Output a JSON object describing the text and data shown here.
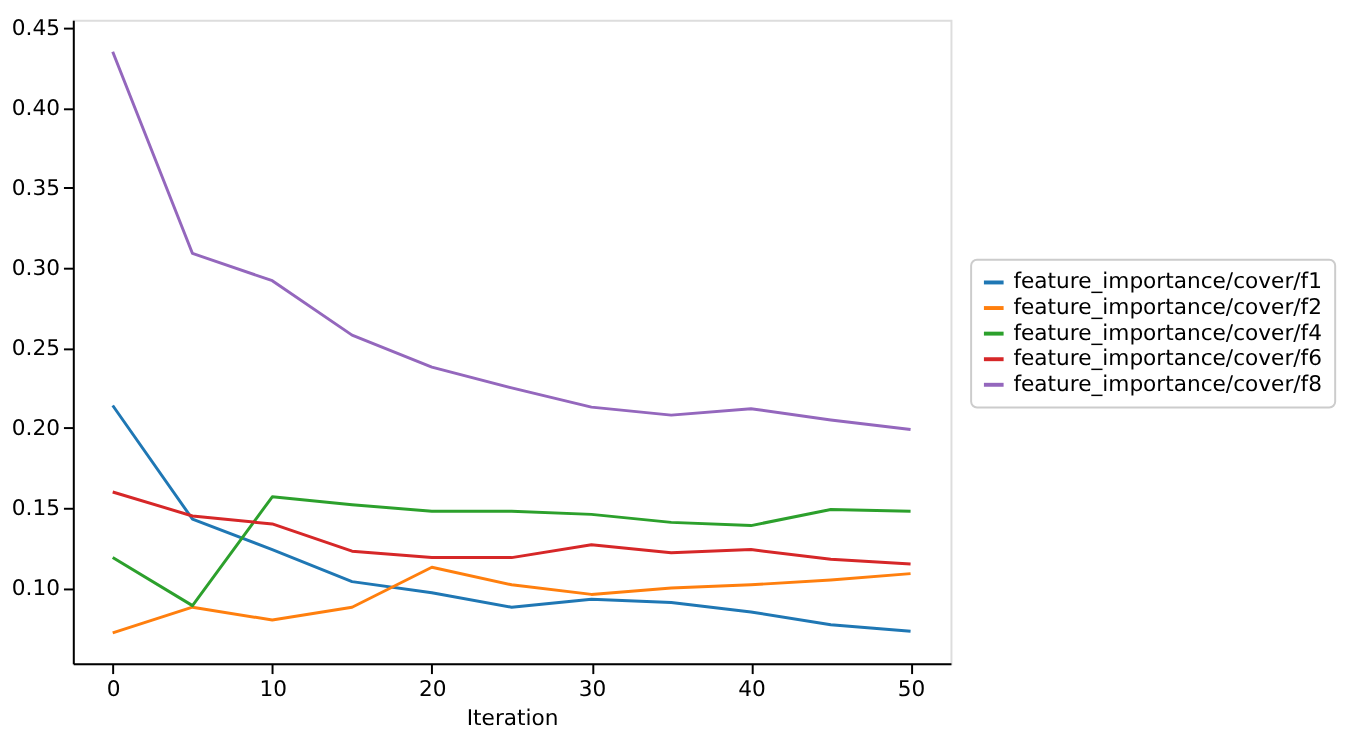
{
  "chart_data": {
    "type": "line",
    "xlabel": "Iteration",
    "x": [
      0,
      5,
      10,
      15,
      20,
      25,
      30,
      35,
      40,
      45,
      50
    ],
    "xlim": [
      -2.5,
      52.5
    ],
    "xticks": [
      0,
      10,
      20,
      30,
      40,
      50
    ],
    "ylim": [
      0.053,
      0.455
    ],
    "yticks": [
      {
        "value": 0.1,
        "label": "0.10"
      },
      {
        "value": 0.15,
        "label": "0.15"
      },
      {
        "value": 0.2,
        "label": "0.20"
      },
      {
        "value": 0.25,
        "label": "0.25"
      },
      {
        "value": 0.3,
        "label": "0.30"
      },
      {
        "value": 0.35,
        "label": "0.35"
      },
      {
        "value": 0.4,
        "label": "0.40"
      },
      {
        "value": 0.45,
        "label": "0.45"
      }
    ],
    "grid": false,
    "legend": "right",
    "marker": "none",
    "line_style": "solid",
    "series": [
      {
        "name": "feature_importance/cover/f1",
        "color": "#1f77b4",
        "values": [
          0.214,
          0.143,
          0.124,
          0.104,
          0.097,
          0.088,
          0.093,
          0.091,
          0.085,
          0.077,
          0.073
        ]
      },
      {
        "name": "feature_importance/cover/f2",
        "color": "#ff7f0e",
        "values": [
          0.072,
          0.088,
          0.08,
          0.088,
          0.113,
          0.102,
          0.096,
          0.1,
          0.102,
          0.105,
          0.109
        ]
      },
      {
        "name": "feature_importance/cover/f4",
        "color": "#2ca02c",
        "values": [
          0.119,
          0.089,
          0.157,
          0.152,
          0.148,
          0.148,
          0.146,
          0.141,
          0.139,
          0.149,
          0.148
        ]
      },
      {
        "name": "feature_importance/cover/f6",
        "color": "#d62728",
        "values": [
          0.16,
          0.145,
          0.14,
          0.123,
          0.119,
          0.119,
          0.127,
          0.122,
          0.124,
          0.118,
          0.115
        ]
      },
      {
        "name": "feature_importance/cover/f8",
        "color": "#9467bd",
        "values": [
          0.435,
          0.309,
          0.292,
          0.258,
          0.238,
          0.225,
          0.213,
          0.208,
          0.212,
          0.205,
          0.199
        ]
      }
    ]
  }
}
